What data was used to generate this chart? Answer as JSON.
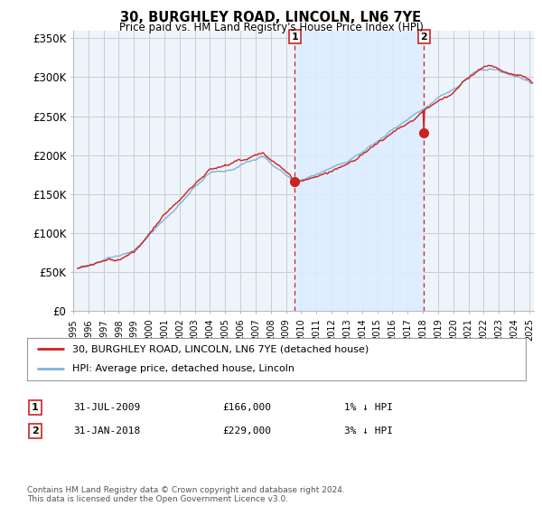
{
  "title": "30, BURGHLEY ROAD, LINCOLN, LN6 7YE",
  "subtitle": "Price paid vs. HM Land Registry's House Price Index (HPI)",
  "ylabel_ticks": [
    "£0",
    "£50K",
    "£100K",
    "£150K",
    "£200K",
    "£250K",
    "£300K",
    "£350K"
  ],
  "ytick_values": [
    0,
    50000,
    100000,
    150000,
    200000,
    250000,
    300000,
    350000
  ],
  "ylim": [
    0,
    360000
  ],
  "xlim_start": 1995.3,
  "xlim_end": 2025.3,
  "hpi_color": "#7fb3d9",
  "price_color": "#cc2222",
  "shade_color": "#ddeeff",
  "marker1_x": 2009.58,
  "marker1_y": 166000,
  "marker2_x": 2018.08,
  "marker2_y": 229000,
  "marker1_label": "1",
  "marker2_label": "2",
  "legend_line1": "30, BURGHLEY ROAD, LINCOLN, LN6 7YE (detached house)",
  "legend_line2": "HPI: Average price, detached house, Lincoln",
  "table_row1": [
    "1",
    "31-JUL-2009",
    "£166,000",
    "1% ↓ HPI"
  ],
  "table_row2": [
    "2",
    "31-JAN-2018",
    "£229,000",
    "3% ↓ HPI"
  ],
  "footer": "Contains HM Land Registry data © Crown copyright and database right 2024.\nThis data is licensed under the Open Government Licence v3.0.",
  "background_color": "#eef4fb",
  "plot_bg_color": "#ffffff",
  "grid_color": "#cccccc",
  "seed": 1234
}
